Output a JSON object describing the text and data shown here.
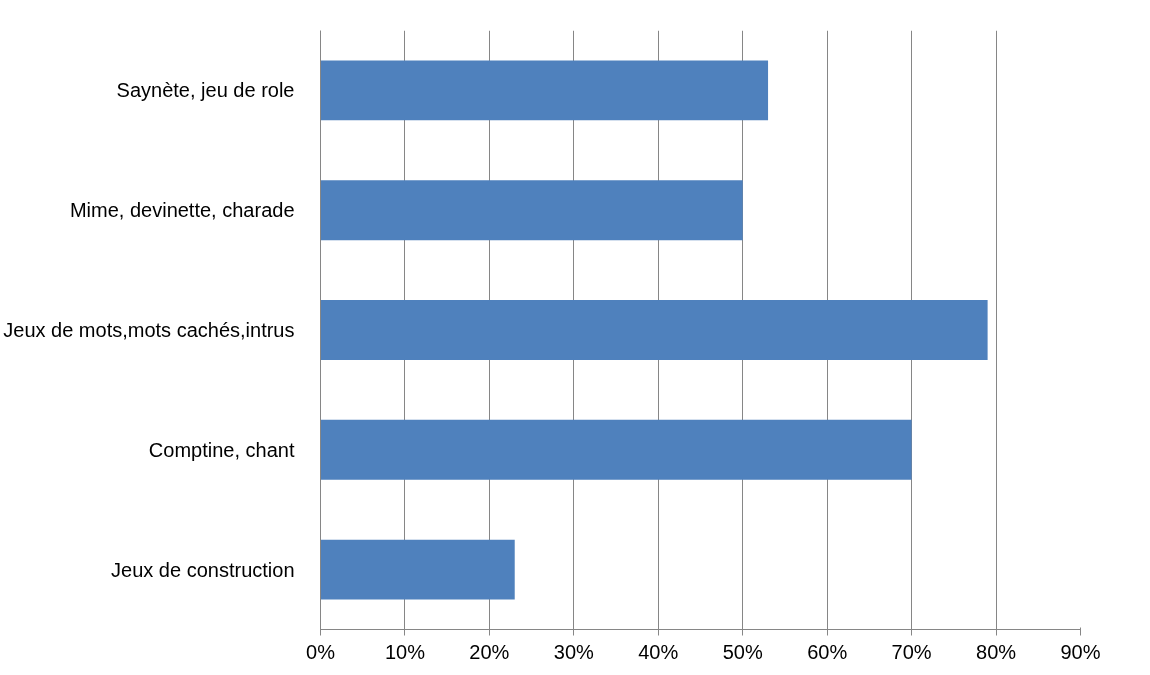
{
  "chart_data": {
    "type": "bar",
    "orientation": "horizontal",
    "categories": [
      "Saynète, jeu de role",
      "Mime, devinette, charade",
      "Jeux de mots,mots cachés,intrus",
      "Comptine, chant",
      "Jeux de construction"
    ],
    "values": [
      53,
      50,
      79,
      70,
      23
    ],
    "color": "#4f81bd",
    "xlim": [
      0,
      90
    ],
    "xticks": [
      {
        "value": 0,
        "label": "0%"
      },
      {
        "value": 10,
        "label": "10%"
      },
      {
        "value": 20,
        "label": "20%"
      },
      {
        "value": 30,
        "label": "30%"
      },
      {
        "value": 40,
        "label": "40%"
      },
      {
        "value": 50,
        "label": "50%"
      },
      {
        "value": 60,
        "label": "60%"
      },
      {
        "value": 70,
        "label": "70%"
      },
      {
        "value": 80,
        "label": "80%"
      },
      {
        "value": 90,
        "label": "90%"
      }
    ],
    "grid": "x"
  }
}
